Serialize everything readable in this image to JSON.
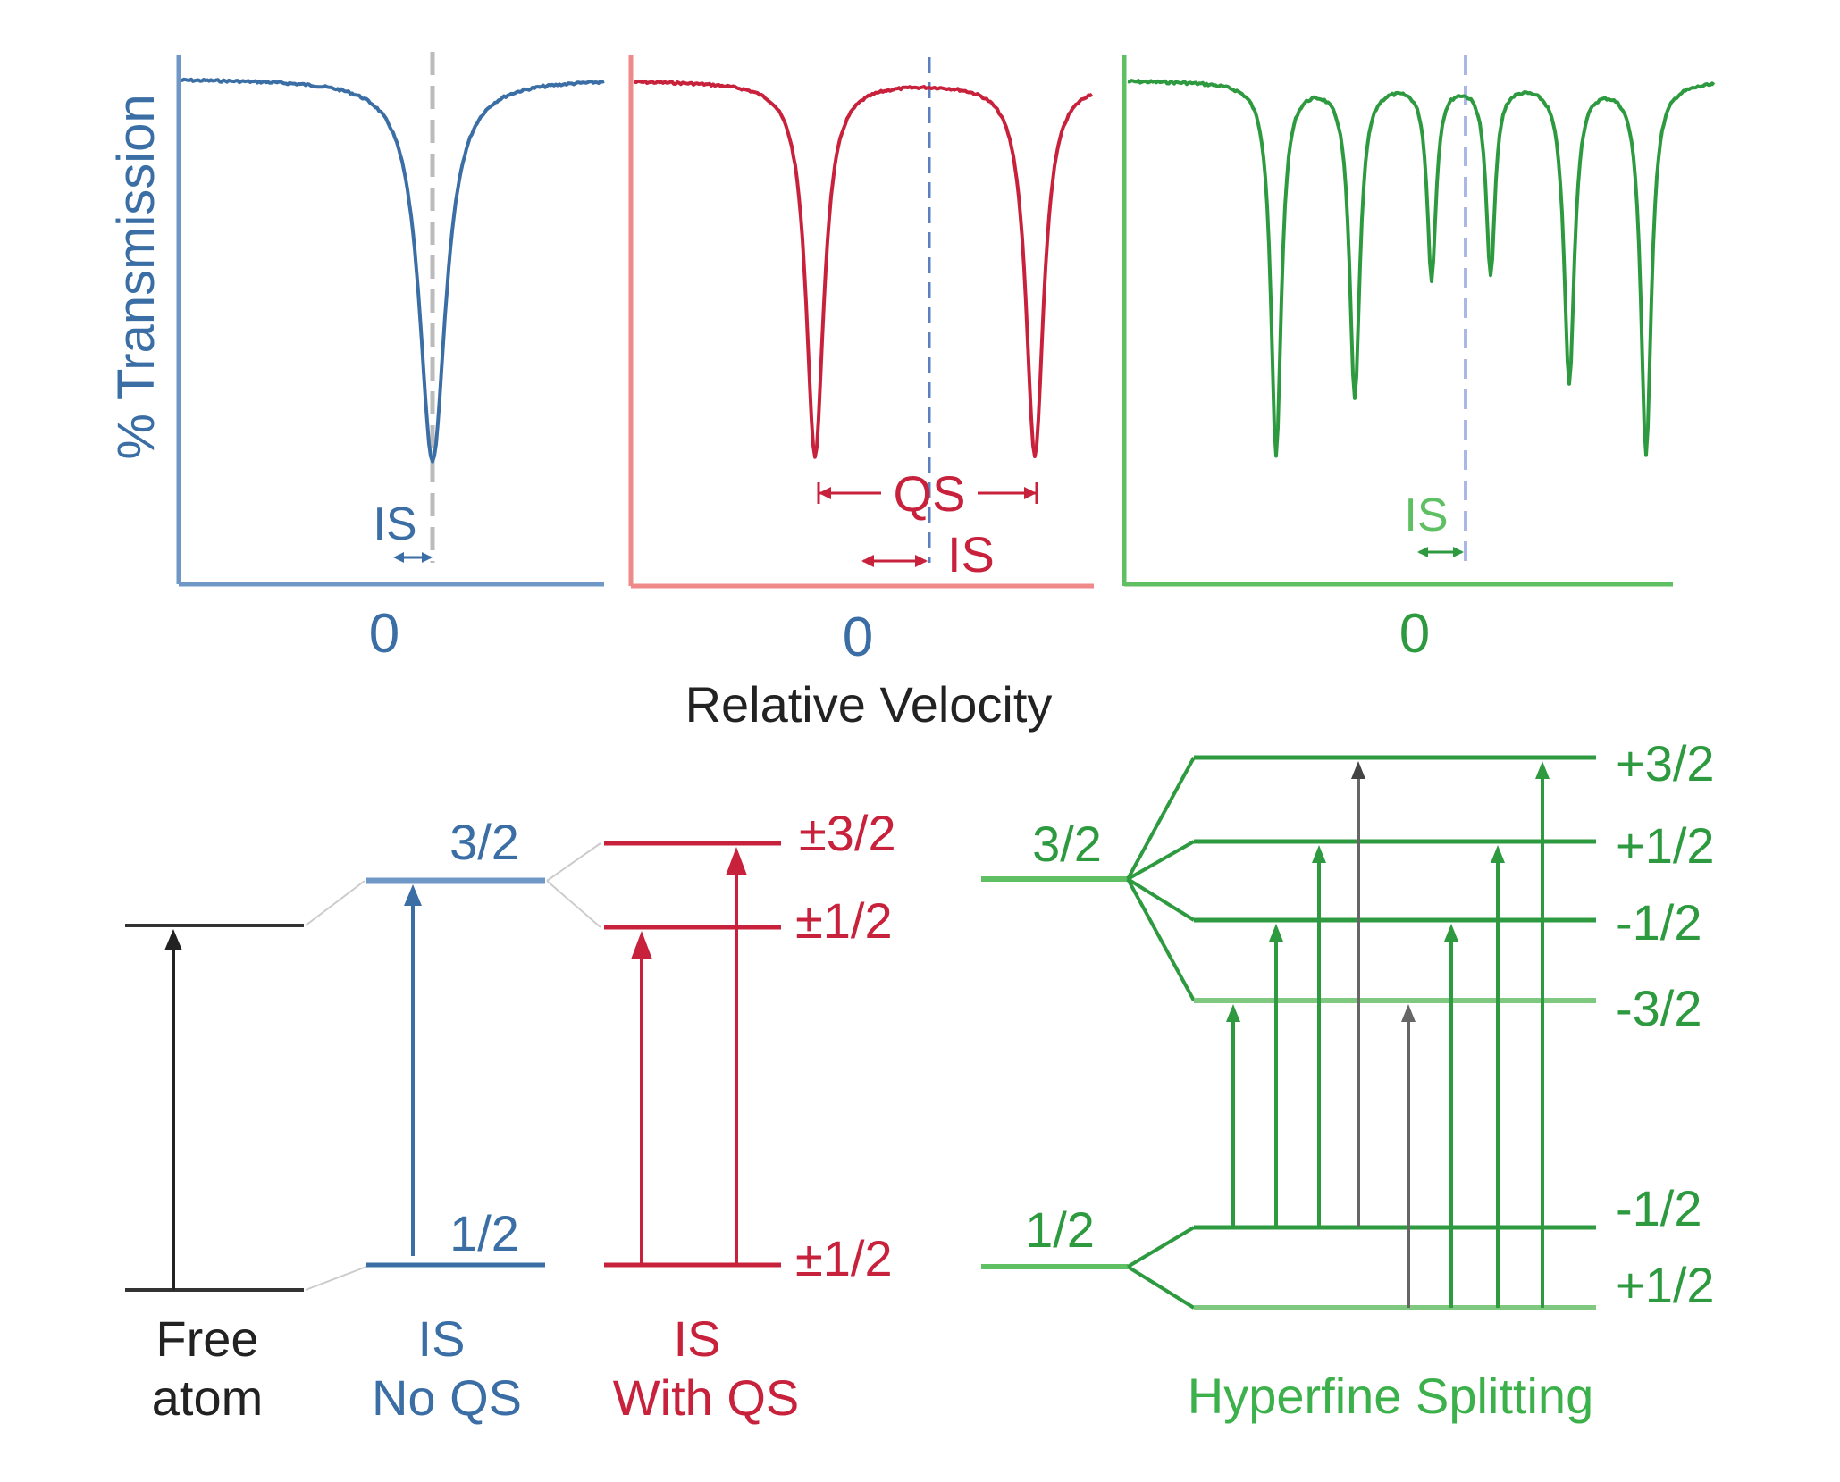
{
  "colors": {
    "blue": "#3a6ea5",
    "blue_light": "#6f98c7",
    "red": "#c8213b",
    "red_light": "#ee8a8a",
    "green": "#2e9a3f",
    "green_light": "#5fbf63",
    "black": "#222222",
    "gray": "#666666",
    "dash_gray": "#bbbbbb"
  },
  "spectra": {
    "ylabel": "% Transmission",
    "xlabel": "Relative Velocity",
    "panels": [
      {
        "id": "single",
        "zero_label": "0",
        "is_label": "IS",
        "qs_label": ""
      },
      {
        "id": "doublet",
        "zero_label": "0",
        "is_label": "IS",
        "qs_label": "QS"
      },
      {
        "id": "sextet",
        "zero_label": "0",
        "is_label": "IS",
        "qs_label": ""
      }
    ]
  },
  "levels": {
    "free_atom": {
      "caption_line1": "Free",
      "caption_line2": "atom"
    },
    "is_no_qs": {
      "excited": "3/2",
      "ground": "1/2",
      "caption_line1": "IS",
      "caption_line2": "No QS"
    },
    "is_with_qs": {
      "excited_upper": "±3/2",
      "excited_lower": "±1/2",
      "ground": "±1/2",
      "caption_line1": "IS",
      "caption_line2": "With QS"
    },
    "hyperfine": {
      "excited": "3/2",
      "ground": "1/2",
      "excited_sublevels": [
        "+3/2",
        "+1/2",
        "-1/2",
        "-3/2"
      ],
      "ground_sublevels": [
        "-1/2",
        "+1/2"
      ],
      "caption": "Hyperfine Splitting"
    }
  }
}
